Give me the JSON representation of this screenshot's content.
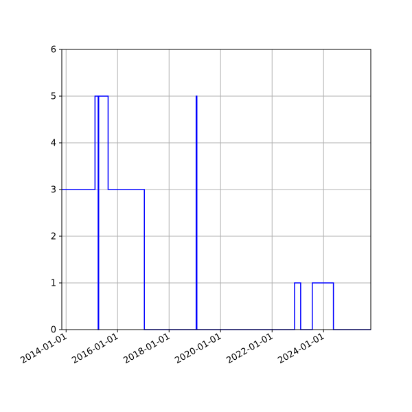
{
  "chart_data": {
    "type": "line",
    "step": "post",
    "title": "",
    "xlabel": "",
    "ylabel": "",
    "grid": true,
    "xlim": [
      "2013-11-01",
      "2025-11-01"
    ],
    "ylim": [
      0,
      6
    ],
    "x_ticks": [
      "2014-01-01",
      "2016-01-01",
      "2018-01-01",
      "2020-01-01",
      "2022-01-01",
      "2024-01-01"
    ],
    "y_ticks": [
      "0",
      "1",
      "2",
      "3",
      "4",
      "5",
      "6"
    ],
    "series": [
      {
        "color": "#0000ff",
        "points": [
          [
            "2013-11-01",
            3
          ],
          [
            "2015-02-15",
            5
          ],
          [
            "2015-04-01",
            0
          ],
          [
            "2015-04-08",
            5
          ],
          [
            "2015-08-20",
            3
          ],
          [
            "2017-01-15",
            0
          ],
          [
            "2019-01-20",
            5
          ],
          [
            "2019-01-30",
            0
          ],
          [
            "2022-11-15",
            1
          ],
          [
            "2023-02-10",
            0
          ],
          [
            "2023-07-25",
            1
          ],
          [
            "2024-05-20",
            0
          ],
          [
            "2025-11-01",
            0
          ]
        ]
      }
    ]
  }
}
